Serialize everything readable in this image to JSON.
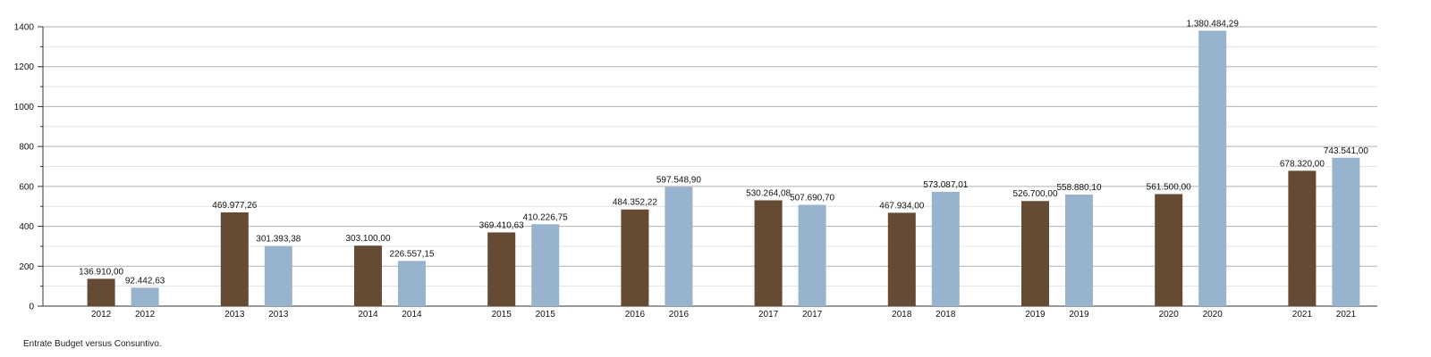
{
  "chart_data": {
    "type": "bar",
    "title": "",
    "xlabel": "",
    "ylabel": "",
    "ylim": [
      0,
      1400
    ],
    "yticks": [
      0,
      200,
      400,
      600,
      800,
      1000,
      1200,
      1400
    ],
    "grid": true,
    "categories": [
      "2012",
      "2013",
      "2014",
      "2015",
      "2016",
      "2017",
      "2018",
      "2019",
      "2020",
      "2021"
    ],
    "series": [
      {
        "color": "#654b33",
        "values": [
          136.91,
          469.97726,
          303.1,
          369.41063,
          484.35222,
          530.26408,
          467.934,
          526.7,
          561.5,
          678.32
        ],
        "labels": [
          "136.910,00",
          "469.977,26",
          "303.100,00",
          "369.410,63",
          "484.352,22",
          "530.264,08",
          "467.934,00",
          "526.700,00",
          "561.500,00",
          "678.320,00"
        ]
      },
      {
        "color": "#98b3cd",
        "values": [
          92.44263,
          301.39338,
          226.55715,
          410.22675,
          597.5489,
          507.6907,
          573.08701,
          558.8801,
          1380.48429,
          743.541
        ],
        "labels": [
          "92.442,63",
          "301.393,38",
          "226.557,15",
          "410.226,75",
          "597.548,90",
          "507.690,70",
          "573.087,01",
          "558.880,10",
          "1.380.484,29",
          "743.541,00"
        ]
      }
    ]
  },
  "caption": "Entrate Budget versus Consuntivo."
}
